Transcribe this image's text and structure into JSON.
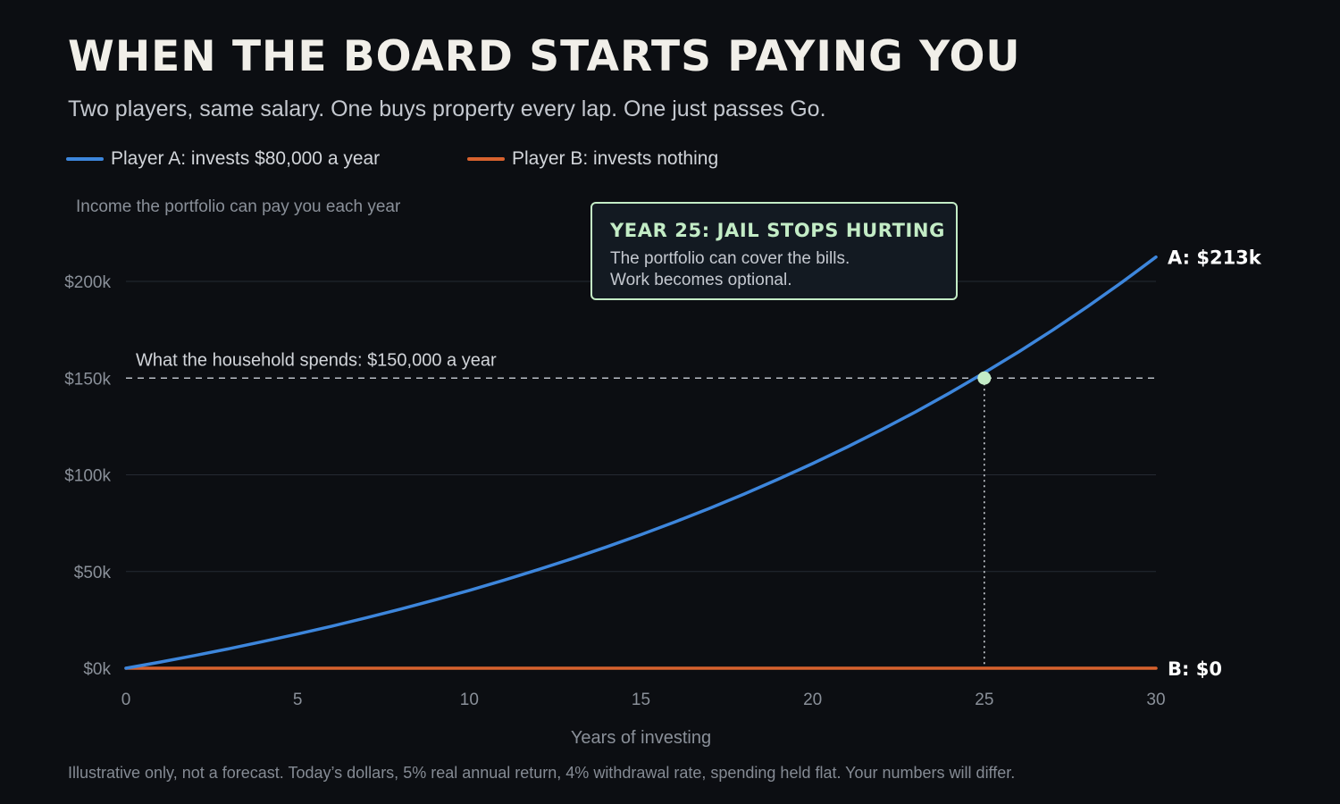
{
  "header": {
    "title": "WHEN THE BOARD STARTS PAYING YOU",
    "subtitle": "Two players, same salary. One buys property every lap. One just passes Go."
  },
  "legend": [
    {
      "label": "Player A: invests $80,000 a year",
      "color": "#3d86dc"
    },
    {
      "label": "Player B: invests nothing",
      "color": "#d8622e"
    }
  ],
  "y_caption": "Income the portfolio can pay you each year",
  "callout": {
    "title": "YEAR 25: JAIL STOPS HURTING",
    "lines": [
      "The portfolio can cover the bills.",
      "Work becomes optional."
    ]
  },
  "footnote": "Illustrative only, not a forecast. Today’s dollars, 5% real annual return, 4% withdrawal rate, spending held flat. Your numbers will differ.",
  "chart_data": {
    "type": "line",
    "title": "WHEN THE BOARD STARTS PAYING YOU",
    "xlabel": "Years of investing",
    "ylabel": "Income the portfolio can pay you each year",
    "xlim": [
      0,
      30
    ],
    "ylim": [
      0,
      200000
    ],
    "x_ticks": [
      0,
      5,
      10,
      15,
      20,
      25,
      30
    ],
    "y_ticks": [
      0,
      50000,
      100000,
      150000,
      200000
    ],
    "y_tick_labels": [
      "$0k",
      "$50k",
      "$100k",
      "$150k",
      "$200k"
    ],
    "grid": true,
    "legend_position": "top-left",
    "x": [
      0,
      1,
      2,
      3,
      4,
      5,
      6,
      7,
      8,
      9,
      10,
      11,
      12,
      13,
      14,
      15,
      16,
      17,
      18,
      19,
      20,
      21,
      22,
      23,
      24,
      25,
      26,
      27,
      28,
      29,
      30
    ],
    "series": [
      {
        "name": "Player A: invests $80,000 a year",
        "color": "#3d86dc",
        "end_label": "A: $213k",
        "values": [
          0,
          3200,
          6560,
          10088,
          13792,
          17682,
          21766,
          26054,
          30557,
          35285,
          40249,
          45461,
          50934,
          56681,
          62715,
          69051,
          75704,
          82689,
          90023,
          97725,
          105811,
          114301,
          123216,
          132577,
          142406,
          152726,
          163563,
          174941,
          186888,
          199432,
          212604
        ]
      },
      {
        "name": "Player B: invests nothing",
        "color": "#d8622e",
        "end_label": "B: $0",
        "values": [
          0,
          0,
          0,
          0,
          0,
          0,
          0,
          0,
          0,
          0,
          0,
          0,
          0,
          0,
          0,
          0,
          0,
          0,
          0,
          0,
          0,
          0,
          0,
          0,
          0,
          0,
          0,
          0,
          0,
          0,
          0
        ]
      }
    ],
    "reference_line": {
      "y": 150000,
      "label": "What the household spends: $150,000 a year"
    },
    "crossover": {
      "x": 25,
      "y": 150000,
      "color": "#c3ecc6"
    }
  }
}
